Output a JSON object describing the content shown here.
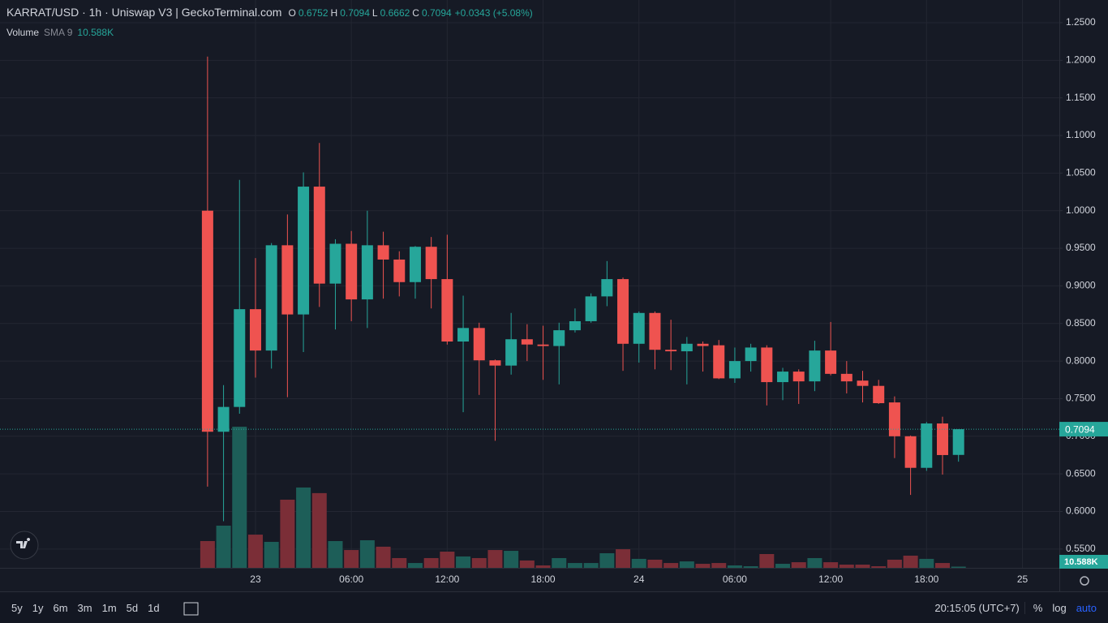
{
  "chart_data": {
    "type": "candlestick",
    "title": "KARRAT/USD · 1h · Uniswap V3 | GeckoTerminal.com",
    "ohlc_keys": [
      "O",
      "H",
      "L",
      "C"
    ],
    "change": "+0.0343 (+5.08%)",
    "volume_name": "Volume",
    "sma_name": "SMA 9",
    "volume_last_label": "10.588K",
    "x": [
      -3,
      -2,
      -1,
      0,
      1,
      2,
      3,
      4,
      5,
      6,
      7,
      8,
      9,
      10,
      11,
      12,
      13,
      14,
      15,
      16,
      17,
      18,
      19,
      20,
      21,
      22,
      23,
      24,
      25,
      26,
      27,
      28,
      29,
      30,
      31,
      32,
      33,
      34,
      35,
      36,
      37,
      38,
      39,
      40,
      41,
      42,
      43,
      44
    ],
    "open": [
      1.0,
      0.706,
      0.739,
      0.869,
      0.814,
      0.954,
      0.862,
      1.032,
      0.903,
      0.956,
      0.882,
      0.954,
      0.935,
      0.905,
      0.952,
      0.909,
      0.826,
      0.844,
      0.801,
      0.794,
      0.829,
      0.822,
      0.82,
      0.841,
      0.853,
      0.886,
      0.909,
      0.823,
      0.864,
      0.815,
      0.813,
      0.823,
      0.821,
      0.777,
      0.8,
      0.818,
      0.772,
      0.786,
      0.773,
      0.814,
      0.783,
      0.774,
      0.767,
      0.745,
      0.7,
      0.658,
      0.717,
      0.6752
    ],
    "high": [
      1.205,
      0.768,
      1.041,
      0.937,
      0.957,
      0.995,
      1.051,
      1.09,
      0.962,
      0.973,
      1.0,
      0.972,
      0.946,
      0.953,
      0.965,
      0.968,
      0.887,
      0.851,
      0.802,
      0.864,
      0.849,
      0.847,
      0.851,
      0.87,
      0.89,
      0.933,
      0.911,
      0.866,
      0.866,
      0.855,
      0.832,
      0.826,
      0.828,
      0.818,
      0.823,
      0.821,
      0.791,
      0.789,
      0.827,
      0.852,
      0.8,
      0.787,
      0.775,
      0.753,
      0.701,
      0.719,
      0.726,
      0.7094
    ],
    "low": [
      0.633,
      0.587,
      0.73,
      0.778,
      0.79,
      0.752,
      0.812,
      0.872,
      0.842,
      0.853,
      0.844,
      0.883,
      0.886,
      0.883,
      0.87,
      0.822,
      0.732,
      0.755,
      0.694,
      0.782,
      0.8,
      0.775,
      0.769,
      0.838,
      0.851,
      0.873,
      0.787,
      0.798,
      0.789,
      0.788,
      0.769,
      0.786,
      0.776,
      0.771,
      0.786,
      0.741,
      0.748,
      0.743,
      0.76,
      0.781,
      0.757,
      0.745,
      0.743,
      0.671,
      0.622,
      0.654,
      0.649,
      0.6662
    ],
    "close": [
      0.706,
      0.739,
      0.869,
      0.814,
      0.954,
      0.862,
      1.032,
      0.903,
      0.956,
      0.882,
      0.954,
      0.935,
      0.905,
      0.952,
      0.909,
      0.826,
      0.844,
      0.801,
      0.794,
      0.829,
      0.822,
      0.82,
      0.841,
      0.853,
      0.886,
      0.909,
      0.823,
      0.864,
      0.815,
      0.813,
      0.823,
      0.82,
      0.777,
      0.8,
      0.818,
      0.772,
      0.786,
      0.773,
      0.814,
      0.783,
      0.773,
      0.767,
      0.744,
      0.7,
      0.658,
      0.717,
      0.675,
      0.7094
    ],
    "volume": [
      233000,
      367000,
      1228000,
      289000,
      226000,
      593000,
      699000,
      650000,
      233000,
      155000,
      240000,
      184000,
      85000,
      42000,
      85000,
      141000,
      99000,
      85000,
      155000,
      148000,
      64000,
      21000,
      85000,
      42000,
      42000,
      127000,
      162000,
      78000,
      71000,
      42000,
      56000,
      35000,
      42000,
      21000,
      14000,
      120000,
      35000,
      49000,
      85000,
      49000,
      28000,
      28000,
      14000,
      71000,
      106000,
      78000,
      42000,
      10588
    ],
    "up_color": "#26a69a",
    "down_color": "#ef5350",
    "up_volume_color": "#1d5e58",
    "down_volume_color": "#7b2e37",
    "ylim": [
      0.525,
      1.2802
    ],
    "yticks": [
      {
        "value": 0.55,
        "label": "0.5500"
      },
      {
        "value": 0.6,
        "label": "0.6000"
      },
      {
        "value": 0.65,
        "label": "0.6500"
      },
      {
        "value": 0.7,
        "label": "0.7000"
      },
      {
        "value": 0.75,
        "label": "0.7500"
      },
      {
        "value": 0.8,
        "label": "0.8000"
      },
      {
        "value": 0.85,
        "label": "0.8500"
      },
      {
        "value": 0.9,
        "label": "0.9000"
      },
      {
        "value": 0.95,
        "label": "0.9500"
      },
      {
        "value": 1.0,
        "label": "1.0000"
      },
      {
        "value": 1.05,
        "label": "1.0500"
      },
      {
        "value": 1.1,
        "label": "1.1000"
      },
      {
        "value": 1.15,
        "label": "1.1500"
      },
      {
        "value": 1.2,
        "label": "1.2000"
      },
      {
        "value": 1.25,
        "label": "1.2500"
      }
    ],
    "xlim": [
      -15.99,
      50.31
    ],
    "xticks": [
      {
        "value": 0,
        "label": "23"
      },
      {
        "value": 6,
        "label": "06:00"
      },
      {
        "value": 12,
        "label": "12:00"
      },
      {
        "value": 18,
        "label": "18:00"
      },
      {
        "value": 24,
        "label": "24"
      },
      {
        "value": 30,
        "label": "06:00"
      },
      {
        "value": 36,
        "label": "12:00"
      },
      {
        "value": 42,
        "label": "18:00"
      },
      {
        "value": 48,
        "label": "25"
      }
    ],
    "grid": true
  },
  "toolbar": {
    "ranges": [
      "5y",
      "1y",
      "6m",
      "3m",
      "1m",
      "5d",
      "1d"
    ],
    "clock": "20:15:05 (UTC+7)",
    "options": [
      "%",
      "log",
      "auto"
    ]
  }
}
